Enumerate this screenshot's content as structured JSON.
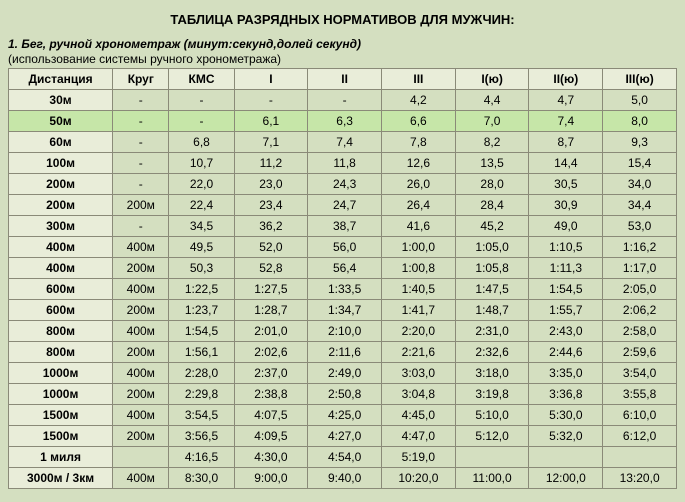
{
  "title": "ТАБЛИЦА РАЗРЯДНЫХ НОРМАТИВОВ ДЛЯ МУЖЧИН:",
  "subtitle": "1. Бег, ручной хронометраж (минут:секунд,долей секунд)",
  "note": "(использование системы ручного хронометража)",
  "columns": [
    "Дистанция",
    "Круг",
    "КМС",
    "I",
    "II",
    "III",
    "I(ю)",
    "II(ю)",
    "III(ю)"
  ],
  "rows": [
    {
      "hl": false,
      "c": [
        "30м",
        "-",
        "-",
        "-",
        "-",
        "4,2",
        "4,4",
        "4,7",
        "5,0"
      ]
    },
    {
      "hl": true,
      "c": [
        "50м",
        "-",
        "-",
        "6,1",
        "6,3",
        "6,6",
        "7,0",
        "7,4",
        "8,0"
      ]
    },
    {
      "hl": false,
      "c": [
        "60м",
        "-",
        "6,8",
        "7,1",
        "7,4",
        "7,8",
        "8,2",
        "8,7",
        "9,3"
      ]
    },
    {
      "hl": false,
      "c": [
        "100м",
        "-",
        "10,7",
        "11,2",
        "11,8",
        "12,6",
        "13,5",
        "14,4",
        "15,4"
      ]
    },
    {
      "hl": false,
      "c": [
        "200м",
        "-",
        "22,0",
        "23,0",
        "24,3",
        "26,0",
        "28,0",
        "30,5",
        "34,0"
      ]
    },
    {
      "hl": false,
      "c": [
        "200м",
        "200м",
        "22,4",
        "23,4",
        "24,7",
        "26,4",
        "28,4",
        "30,9",
        "34,4"
      ]
    },
    {
      "hl": false,
      "c": [
        "300м",
        "-",
        "34,5",
        "36,2",
        "38,7",
        "41,6",
        "45,2",
        "49,0",
        "53,0"
      ]
    },
    {
      "hl": false,
      "c": [
        "400м",
        "400м",
        "49,5",
        "52,0",
        "56,0",
        "1:00,0",
        "1:05,0",
        "1:10,5",
        "1:16,2"
      ]
    },
    {
      "hl": false,
      "c": [
        "400м",
        "200м",
        "50,3",
        "52,8",
        "56,4",
        "1:00,8",
        "1:05,8",
        "1:11,3",
        "1:17,0"
      ]
    },
    {
      "hl": false,
      "c": [
        "600м",
        "400м",
        "1:22,5",
        "1:27,5",
        "1:33,5",
        "1:40,5",
        "1:47,5",
        "1:54,5",
        "2:05,0"
      ]
    },
    {
      "hl": false,
      "c": [
        "600м",
        "200м",
        "1:23,7",
        "1:28,7",
        "1:34,7",
        "1:41,7",
        "1:48,7",
        "1:55,7",
        "2:06,2"
      ]
    },
    {
      "hl": false,
      "c": [
        "800м",
        "400м",
        "1:54,5",
        "2:01,0",
        "2:10,0",
        "2:20,0",
        "2:31,0",
        "2:43,0",
        "2:58,0"
      ]
    },
    {
      "hl": false,
      "c": [
        "800м",
        "200м",
        "1:56,1",
        "2:02,6",
        "2:11,6",
        "2:21,6",
        "2:32,6",
        "2:44,6",
        "2:59,6"
      ]
    },
    {
      "hl": false,
      "c": [
        "1000м",
        "400м",
        "2:28,0",
        "2:37,0",
        "2:49,0",
        "3:03,0",
        "3:18,0",
        "3:35,0",
        "3:54,0"
      ]
    },
    {
      "hl": false,
      "c": [
        "1000м",
        "200м",
        "2:29,8",
        "2:38,8",
        "2:50,8",
        "3:04,8",
        "3:19,8",
        "3:36,8",
        "3:55,8"
      ]
    },
    {
      "hl": false,
      "c": [
        "1500м",
        "400м",
        "3:54,5",
        "4:07,5",
        "4:25,0",
        "4:45,0",
        "5:10,0",
        "5:30,0",
        "6:10,0"
      ]
    },
    {
      "hl": false,
      "c": [
        "1500м",
        "200м",
        "3:56,5",
        "4:09,5",
        "4:27,0",
        "4:47,0",
        "5:12,0",
        "5:32,0",
        "6:12,0"
      ]
    },
    {
      "hl": false,
      "c": [
        "1 миля",
        "",
        "4:16,5",
        "4:30,0",
        "4:54,0",
        "5:19,0",
        "",
        "",
        ""
      ]
    },
    {
      "hl": false,
      "c": [
        "3000м / 3км",
        "400м",
        "8:30,0",
        "9:00,0",
        "9:40,0",
        "10:20,0",
        "11:00,0",
        "12:00,0",
        "13:20,0"
      ]
    }
  ]
}
